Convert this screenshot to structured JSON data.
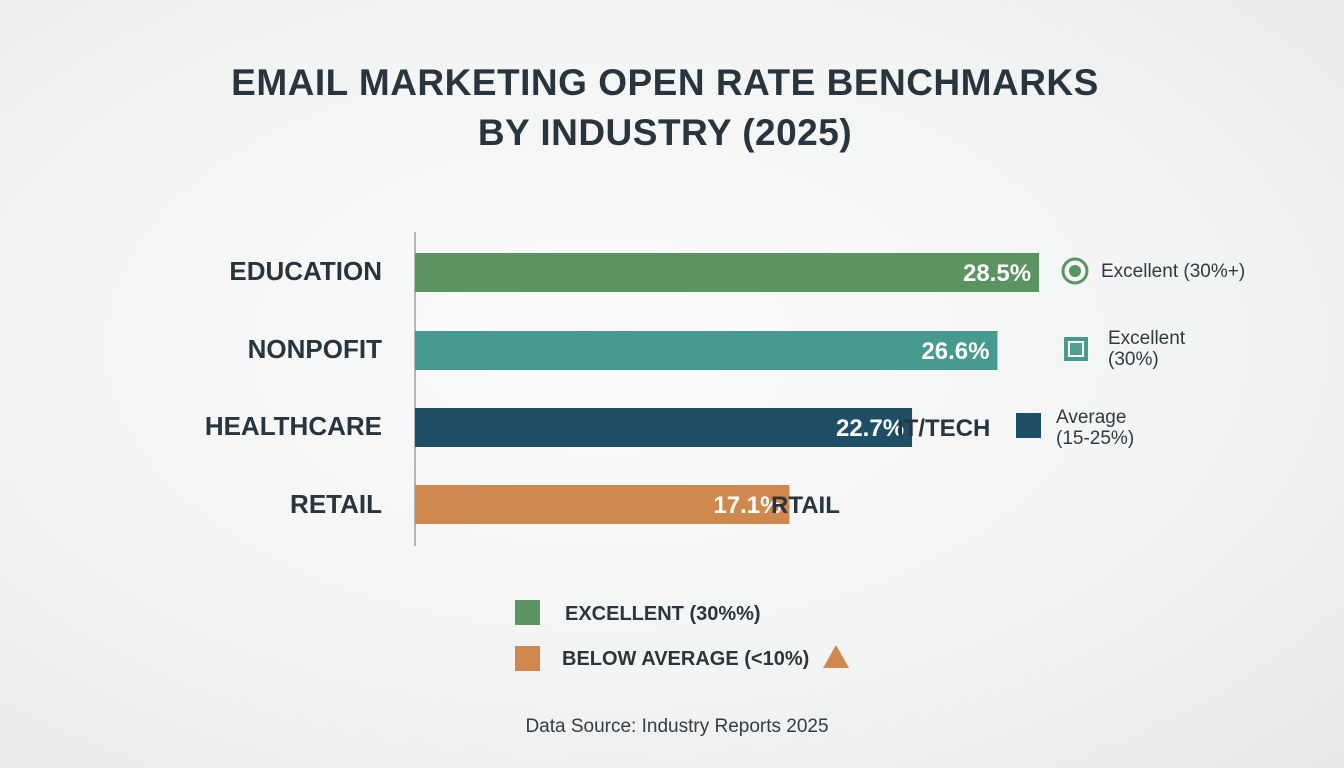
{
  "chart_data": {
    "type": "bar",
    "orientation": "horizontal",
    "title": "EMAIL MARKETING OPEN RATE BENCHMARKS BY INDUSTRY (2025)",
    "title_lines": [
      "EMAIL MARKETING OPEN RATE BENCHMARKS",
      "BY INDUSTRY (2025)"
    ],
    "categories": [
      "EDUCATION",
      "NONPOFIT",
      "HEALTHCARE",
      "RETAIL"
    ],
    "values": [
      28.5,
      26.6,
      22.7,
      17.1
    ],
    "data_labels": [
      "28.5%",
      "26.6%",
      "22.7%",
      "17.1%"
    ],
    "colors": [
      "#5b9461",
      "#469a8e",
      "#1f4f67",
      "#cf884d"
    ],
    "xlim": [
      0,
      29
    ],
    "grid": false,
    "annotations": [
      {
        "text": "Excellent (30%+)",
        "icon": "circle-target-icon",
        "color": "#5b9461"
      },
      {
        "text_lines": [
          "Excellent",
          "(30%)"
        ],
        "icon": "square-outline-icon",
        "color": "#469a8e"
      },
      {
        "text": "IT/TECH"
      },
      {
        "text_lines": [
          "Average",
          "(15-25%)"
        ],
        "icon": "square-icon",
        "color": "#1f4f67"
      },
      {
        "text": "RTAIL"
      }
    ],
    "legend": [
      {
        "label": "EXCELLENT (30%%)",
        "color": "#5b9461"
      },
      {
        "label": "BELOW AVERAGE (<10%)",
        "color": "#cf884d",
        "extra_icon": "triangle-icon"
      }
    ],
    "legend_position": "bottom",
    "source": "Data Source: Industry Reports 2025"
  }
}
